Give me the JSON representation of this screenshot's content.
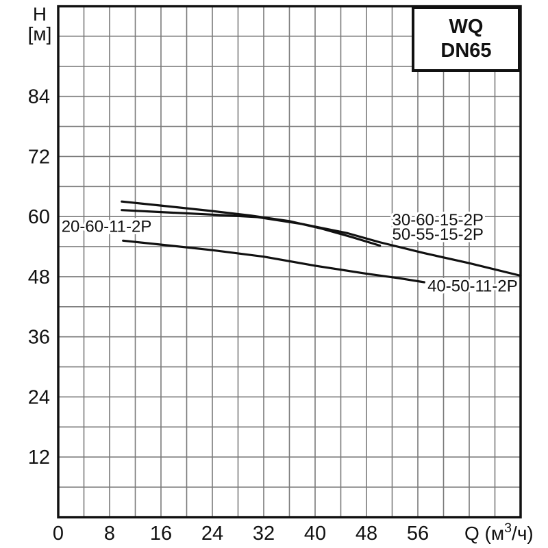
{
  "page": {
    "background": "#ffffff"
  },
  "title_box": {
    "line1": "WQ",
    "line2": "DN65"
  },
  "chart_data": {
    "type": "line",
    "title": "WQ DN65",
    "xlabel": "Q (м³/ч)",
    "ylabel": "H [м]",
    "x_axis": {
      "label": "Q (м³/ч)",
      "label_parts": {
        "prefix": "Q (м",
        "sup": "3",
        "suffix": "/ч)"
      },
      "range": [
        0,
        72
      ],
      "ticks": [
        0,
        8,
        16,
        24,
        32,
        40,
        48,
        56
      ],
      "grid_step": 4
    },
    "y_axis": {
      "label_lines": [
        "H",
        "[м]"
      ],
      "range": [
        0,
        102
      ],
      "ticks": [
        12,
        24,
        36,
        48,
        60,
        72,
        84
      ],
      "grid_step": 6
    },
    "grid": true,
    "legend_position": "none",
    "colors": {
      "curve": "#111111",
      "grid": "#7a7a7a",
      "frame": "#111111",
      "text": "#111111",
      "background": "#ffffff"
    },
    "series": [
      {
        "name": "30-60-15-2P",
        "points": [
          [
            9.9,
            63.0
          ],
          [
            16,
            62.2
          ],
          [
            24,
            61.1
          ],
          [
            30,
            60.2
          ],
          [
            36,
            59.1
          ],
          [
            41,
            57.6
          ],
          [
            46,
            55.8
          ],
          [
            50.1,
            54.2
          ]
        ]
      },
      {
        "name": "50-55-15-2P",
        "points": [
          [
            9.9,
            61.3
          ],
          [
            16,
            60.9
          ],
          [
            24,
            60.4
          ],
          [
            31,
            59.9
          ],
          [
            38,
            58.5
          ],
          [
            45,
            56.7
          ],
          [
            50,
            54.9
          ],
          [
            57,
            52.7
          ],
          [
            64,
            50.7
          ],
          [
            72,
            48.2
          ]
        ]
      },
      {
        "name": "40-50-11-2P",
        "points": [
          [
            10.1,
            55.2
          ],
          [
            16,
            54.4
          ],
          [
            24,
            53.3
          ],
          [
            32,
            52.0
          ],
          [
            40,
            50.2
          ],
          [
            48,
            48.6
          ],
          [
            53,
            47.7
          ],
          [
            57,
            46.9
          ]
        ]
      }
    ],
    "annotations": [
      {
        "text": "20-60-11-2P",
        "x": 0.5,
        "y": 58.2,
        "anchor": "start"
      },
      {
        "text": "30-60-15-2P",
        "x": 52.0,
        "y": 59.5,
        "anchor": "start"
      },
      {
        "text": "50-55-15-2P",
        "x": 52.0,
        "y": 56.6,
        "anchor": "start"
      },
      {
        "text": "40-50-11-2P",
        "x": 57.5,
        "y": 46.3,
        "anchor": "start"
      }
    ]
  }
}
